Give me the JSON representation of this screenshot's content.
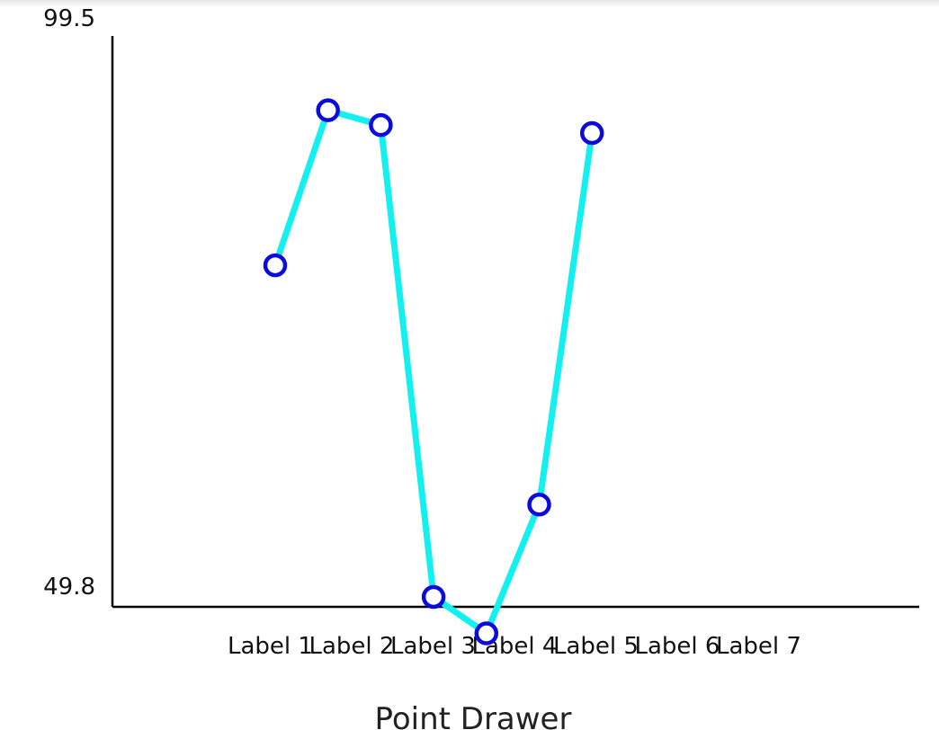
{
  "chart_data": {
    "type": "line",
    "title": "Point Drawer",
    "xlabel": "",
    "ylabel": "",
    "categories": [
      "Label 1",
      "Label 2",
      "Label 3",
      "Label 4",
      "Label 5",
      "Label 6",
      "Label 7"
    ],
    "y_tick_labels": [
      "99.5",
      "49.8"
    ],
    "ylim": [
      49.8,
      99.5
    ],
    "grid": false,
    "series": [
      {
        "x": [
          1.0,
          1.5,
          2.0,
          2.5,
          3.0,
          3.5,
          4.0
        ],
        "values": [
          77.8,
          91.4,
          90.1,
          48.7,
          45.5,
          56.8,
          89.4
        ]
      }
    ],
    "colors": {
      "line": "#14f0f0",
      "marker_stroke": "#0b0bdc",
      "marker_fill": "#ffffff",
      "axis": "#000000"
    }
  }
}
